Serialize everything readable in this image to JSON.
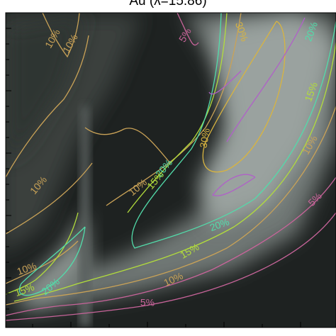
{
  "chart_data": {
    "type": "contour",
    "title": "Au (λ=15.86)",
    "levels": [
      {
        "value": 5,
        "label": "5%",
        "color": "#c8649a"
      },
      {
        "value": 10,
        "label": "10%",
        "color": "#c9a257"
      },
      {
        "value": 15,
        "label": "15%",
        "color": "#b2dc3c"
      },
      {
        "value": 20,
        "label": "20%",
        "color": "#52dcaa"
      },
      {
        "value": 30,
        "label": "30%",
        "color": "#d8b440"
      }
    ]
  }
}
